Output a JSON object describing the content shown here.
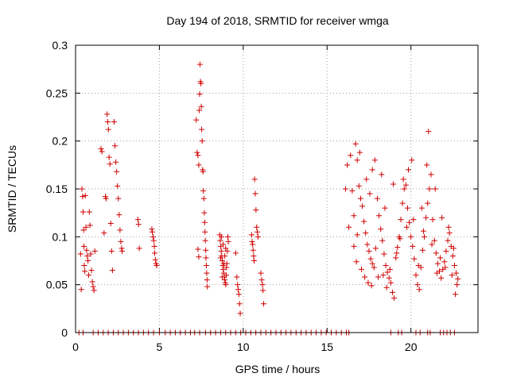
{
  "chart_data": {
    "type": "scatter",
    "title": "Day 194 of 2018, SRMTID for receiver wmga",
    "xlabel": "GPS time / hours",
    "ylabel": "SRMTID / TECUs",
    "xlim": [
      0,
      24
    ],
    "ylim": [
      0,
      0.3
    ],
    "xticks": [
      0,
      5,
      10,
      15,
      20
    ],
    "yticks": [
      0,
      0.05,
      0.1,
      0.15,
      0.2,
      0.25,
      0.3
    ],
    "xtick_labels": [
      "0",
      "5",
      "10",
      "15",
      "20"
    ],
    "ytick_labels": [
      "0",
      "0.05",
      "0.1",
      "0.15",
      "0.2",
      "0.25",
      "0.3"
    ],
    "grid": true,
    "marker": "+",
    "color": "#d00000",
    "series": [
      {
        "name": "SRMTID",
        "points": [
          [
            0.2,
            0.0
          ],
          [
            0.45,
            0.0
          ],
          [
            1.05,
            0.0
          ],
          [
            1.35,
            0.0
          ],
          [
            1.65,
            0.0
          ],
          [
            1.95,
            0.0
          ],
          [
            2.25,
            0.0
          ],
          [
            2.55,
            0.0
          ],
          [
            2.85,
            0.0
          ],
          [
            3.15,
            0.0
          ],
          [
            3.45,
            0.0
          ],
          [
            3.75,
            0.0
          ],
          [
            4.05,
            0.0
          ],
          [
            4.35,
            0.0
          ],
          [
            4.65,
            0.0
          ],
          [
            5.0,
            0.0
          ],
          [
            5.35,
            0.0
          ],
          [
            5.65,
            0.0
          ],
          [
            5.95,
            0.0
          ],
          [
            6.25,
            0.0
          ],
          [
            6.55,
            0.0
          ],
          [
            6.85,
            0.0
          ],
          [
            7.1,
            0.0
          ],
          [
            7.4,
            0.0
          ],
          [
            7.75,
            0.0
          ],
          [
            8.05,
            0.0
          ],
          [
            8.35,
            0.0
          ],
          [
            8.65,
            0.0
          ],
          [
            8.95,
            0.0
          ],
          [
            9.25,
            0.0
          ],
          [
            9.55,
            0.0
          ],
          [
            9.85,
            0.0
          ],
          [
            10.15,
            0.0
          ],
          [
            10.45,
            0.0
          ],
          [
            10.75,
            0.0
          ],
          [
            11.05,
            0.0
          ],
          [
            11.35,
            0.0
          ],
          [
            11.65,
            0.0
          ],
          [
            11.95,
            0.0
          ],
          [
            12.25,
            0.0
          ],
          [
            12.55,
            0.0
          ],
          [
            12.85,
            0.0
          ],
          [
            13.15,
            0.0
          ],
          [
            13.45,
            0.0
          ],
          [
            13.75,
            0.0
          ],
          [
            14.05,
            0.0
          ],
          [
            14.35,
            0.0
          ],
          [
            14.65,
            0.0
          ],
          [
            14.95,
            0.0
          ],
          [
            15.25,
            0.0
          ],
          [
            15.55,
            0.0
          ],
          [
            15.85,
            0.0
          ],
          [
            16.15,
            0.0
          ],
          [
            16.3,
            0.0
          ],
          [
            18.8,
            0.0
          ],
          [
            19.25,
            0.0
          ],
          [
            19.45,
            0.0
          ],
          [
            20.3,
            0.0
          ],
          [
            20.55,
            0.0
          ],
          [
            21.0,
            0.0
          ],
          [
            21.15,
            0.0
          ],
          [
            21.75,
            0.0
          ],
          [
            21.95,
            0.0
          ],
          [
            22.15,
            0.0
          ],
          [
            22.35,
            0.0
          ],
          [
            22.6,
            0.0
          ],
          [
            0.3,
            0.082
          ],
          [
            0.34,
            0.045
          ],
          [
            0.38,
            0.15
          ],
          [
            0.42,
            0.142
          ],
          [
            0.45,
            0.126
          ],
          [
            0.48,
            0.107
          ],
          [
            0.5,
            0.09
          ],
          [
            0.52,
            0.07
          ],
          [
            0.55,
            0.064
          ],
          [
            0.58,
            0.143
          ],
          [
            0.62,
            0.11
          ],
          [
            0.66,
            0.086
          ],
          [
            0.7,
            0.08
          ],
          [
            0.74,
            0.075
          ],
          [
            0.78,
            0.06
          ],
          [
            0.82,
            0.126
          ],
          [
            0.86,
            0.112
          ],
          [
            0.9,
            0.082
          ],
          [
            0.95,
            0.065
          ],
          [
            1.0,
            0.053
          ],
          [
            1.05,
            0.048
          ],
          [
            1.1,
            0.044
          ],
          [
            1.15,
            0.085
          ],
          [
            1.52,
            0.192
          ],
          [
            1.57,
            0.189
          ],
          [
            1.7,
            0.104
          ],
          [
            1.78,
            0.142
          ],
          [
            1.82,
            0.14
          ],
          [
            1.88,
            0.228
          ],
          [
            1.92,
            0.22
          ],
          [
            1.96,
            0.212
          ],
          [
            2.0,
            0.183
          ],
          [
            2.05,
            0.176
          ],
          [
            2.1,
            0.114
          ],
          [
            2.15,
            0.085
          ],
          [
            2.2,
            0.065
          ],
          [
            2.3,
            0.22
          ],
          [
            2.35,
            0.195
          ],
          [
            2.4,
            0.178
          ],
          [
            2.45,
            0.168
          ],
          [
            2.5,
            0.153
          ],
          [
            2.55,
            0.14
          ],
          [
            2.6,
            0.123
          ],
          [
            2.65,
            0.107
          ],
          [
            2.7,
            0.095
          ],
          [
            2.75,
            0.088
          ],
          [
            2.78,
            0.085
          ],
          [
            3.72,
            0.118
          ],
          [
            3.76,
            0.113
          ],
          [
            3.8,
            0.088
          ],
          [
            4.55,
            0.108
          ],
          [
            4.58,
            0.105
          ],
          [
            4.62,
            0.1
          ],
          [
            4.66,
            0.096
          ],
          [
            4.7,
            0.09
          ],
          [
            4.72,
            0.083
          ],
          [
            4.76,
            0.076
          ],
          [
            4.8,
            0.072
          ],
          [
            4.84,
            0.07
          ],
          [
            7.2,
            0.222
          ],
          [
            7.25,
            0.188
          ],
          [
            7.3,
            0.185
          ],
          [
            7.35,
            0.175
          ],
          [
            7.38,
            0.232
          ],
          [
            7.4,
            0.249
          ],
          [
            7.42,
            0.28
          ],
          [
            7.45,
            0.262
          ],
          [
            7.48,
            0.26
          ],
          [
            7.5,
            0.236
          ],
          [
            7.52,
            0.212
          ],
          [
            7.55,
            0.2
          ],
          [
            7.58,
            0.17
          ],
          [
            7.6,
            0.168
          ],
          [
            7.62,
            0.148
          ],
          [
            7.65,
            0.14
          ],
          [
            7.68,
            0.125
          ],
          [
            7.7,
            0.115
          ],
          [
            7.72,
            0.105
          ],
          [
            7.74,
            0.096
          ],
          [
            7.76,
            0.086
          ],
          [
            7.78,
            0.078
          ],
          [
            7.8,
            0.07
          ],
          [
            7.82,
            0.062
          ],
          [
            7.84,
            0.055
          ],
          [
            7.86,
            0.048
          ],
          [
            7.3,
            0.087
          ],
          [
            7.35,
            0.079
          ],
          [
            8.6,
            0.102
          ],
          [
            8.63,
            0.096
          ],
          [
            8.66,
            0.09
          ],
          [
            8.69,
            0.085
          ],
          [
            8.72,
            0.08
          ],
          [
            8.75,
            0.075
          ],
          [
            8.78,
            0.07
          ],
          [
            8.81,
            0.066
          ],
          [
            8.84,
            0.062
          ],
          [
            8.87,
            0.058
          ],
          [
            8.9,
            0.055
          ],
          [
            8.93,
            0.052
          ],
          [
            8.96,
            0.05
          ],
          [
            8.99,
            0.06
          ],
          [
            9.02,
            0.072
          ],
          [
            9.05,
            0.085
          ],
          [
            9.08,
            0.1
          ],
          [
            9.11,
            0.095
          ],
          [
            8.7,
            0.1
          ],
          [
            8.8,
            0.092
          ],
          [
            8.9,
            0.08
          ],
          [
            9.0,
            0.068
          ],
          [
            8.75,
            0.058
          ],
          [
            8.85,
            0.072
          ],
          [
            8.95,
            0.088
          ],
          [
            8.65,
            0.078
          ],
          [
            9.55,
            0.083
          ],
          [
            9.62,
            0.058
          ],
          [
            9.66,
            0.05
          ],
          [
            9.7,
            0.045
          ],
          [
            9.74,
            0.04
          ],
          [
            9.78,
            0.03
          ],
          [
            9.82,
            0.02
          ],
          [
            10.5,
            0.102
          ],
          [
            10.53,
            0.095
          ],
          [
            10.56,
            0.092
          ],
          [
            10.59,
            0.086
          ],
          [
            10.62,
            0.08
          ],
          [
            10.65,
            0.075
          ],
          [
            10.68,
            0.16
          ],
          [
            10.72,
            0.145
          ],
          [
            10.76,
            0.128
          ],
          [
            10.8,
            0.11
          ],
          [
            10.84,
            0.105
          ],
          [
            10.88,
            0.1
          ],
          [
            11.05,
            0.062
          ],
          [
            11.1,
            0.055
          ],
          [
            11.15,
            0.05
          ],
          [
            11.18,
            0.044
          ],
          [
            11.22,
            0.03
          ],
          [
            16.1,
            0.15
          ],
          [
            16.2,
            0.175
          ],
          [
            16.3,
            0.11
          ],
          [
            16.4,
            0.185
          ],
          [
            16.5,
            0.148
          ],
          [
            16.6,
            0.122
          ],
          [
            16.7,
            0.197
          ],
          [
            16.8,
            0.102
          ],
          [
            16.9,
            0.153
          ],
          [
            17.0,
            0.14
          ],
          [
            17.1,
            0.132
          ],
          [
            17.2,
            0.116
          ],
          [
            17.3,
            0.104
          ],
          [
            17.4,
            0.092
          ],
          [
            17.5,
            0.085
          ],
          [
            17.6,
            0.077
          ],
          [
            17.7,
            0.072
          ],
          [
            17.8,
            0.068
          ],
          [
            17.9,
            0.088
          ],
          [
            18.0,
            0.14
          ],
          [
            18.1,
            0.122
          ],
          [
            18.2,
            0.108
          ],
          [
            18.3,
            0.096
          ],
          [
            18.4,
            0.082
          ],
          [
            18.5,
            0.07
          ],
          [
            18.6,
            0.063
          ],
          [
            18.7,
            0.057
          ],
          [
            18.8,
            0.052
          ],
          [
            18.9,
            0.042
          ],
          [
            19.0,
            0.036
          ],
          [
            19.1,
            0.078
          ],
          [
            19.2,
            0.089
          ],
          [
            19.3,
            0.1
          ],
          [
            19.4,
            0.118
          ],
          [
            19.5,
            0.135
          ],
          [
            19.6,
            0.15
          ],
          [
            19.7,
            0.154
          ],
          [
            19.8,
            0.13
          ],
          [
            19.9,
            0.115
          ],
          [
            20.0,
            0.1
          ],
          [
            20.1,
            0.09
          ],
          [
            20.2,
            0.077
          ],
          [
            20.3,
            0.06
          ],
          [
            20.4,
            0.05
          ],
          [
            20.5,
            0.045
          ],
          [
            20.6,
            0.068
          ],
          [
            20.7,
            0.086
          ],
          [
            20.8,
            0.1
          ],
          [
            20.9,
            0.12
          ],
          [
            21.0,
            0.135
          ],
          [
            21.1,
            0.15
          ],
          [
            21.2,
            0.165
          ],
          [
            21.3,
            0.118
          ],
          [
            21.4,
            0.096
          ],
          [
            21.5,
            0.083
          ],
          [
            21.6,
            0.072
          ],
          [
            21.7,
            0.064
          ],
          [
            21.8,
            0.057
          ],
          [
            21.9,
            0.066
          ],
          [
            22.0,
            0.074
          ],
          [
            22.1,
            0.085
          ],
          [
            22.2,
            0.096
          ],
          [
            22.3,
            0.104
          ],
          [
            22.4,
            0.09
          ],
          [
            22.5,
            0.08
          ],
          [
            22.6,
            0.07
          ],
          [
            22.7,
            0.062
          ],
          [
            22.8,
            0.056
          ],
          [
            21.05,
            0.21
          ],
          [
            20.05,
            0.18
          ],
          [
            19.85,
            0.17
          ],
          [
            18.25,
            0.165
          ],
          [
            17.85,
            0.18
          ],
          [
            17.7,
            0.17
          ],
          [
            16.8,
            0.18
          ],
          [
            16.95,
            0.188
          ],
          [
            17.35,
            0.16
          ],
          [
            17.55,
            0.145
          ],
          [
            18.45,
            0.13
          ],
          [
            18.95,
            0.155
          ],
          [
            19.55,
            0.16
          ],
          [
            20.65,
            0.13
          ],
          [
            20.95,
            0.175
          ],
          [
            21.45,
            0.15
          ],
          [
            21.85,
            0.12
          ],
          [
            22.25,
            0.11
          ],
          [
            22.55,
            0.088
          ],
          [
            22.75,
            0.05
          ],
          [
            22.65,
            0.04
          ],
          [
            16.6,
            0.09
          ],
          [
            16.75,
            0.074
          ],
          [
            17.05,
            0.066
          ],
          [
            17.25,
            0.058
          ],
          [
            17.45,
            0.052
          ],
          [
            17.65,
            0.049
          ],
          [
            18.05,
            0.058
          ],
          [
            18.35,
            0.06
          ],
          [
            18.55,
            0.047
          ],
          [
            18.75,
            0.066
          ],
          [
            19.15,
            0.083
          ],
          [
            19.35,
            0.098
          ],
          [
            19.75,
            0.11
          ],
          [
            20.15,
            0.118
          ],
          [
            20.45,
            0.07
          ],
          [
            20.75,
            0.106
          ],
          [
            21.25,
            0.092
          ],
          [
            21.55,
            0.062
          ],
          [
            21.75,
            0.078
          ],
          [
            22.05,
            0.068
          ],
          [
            22.45,
            0.06
          ]
        ]
      }
    ]
  }
}
